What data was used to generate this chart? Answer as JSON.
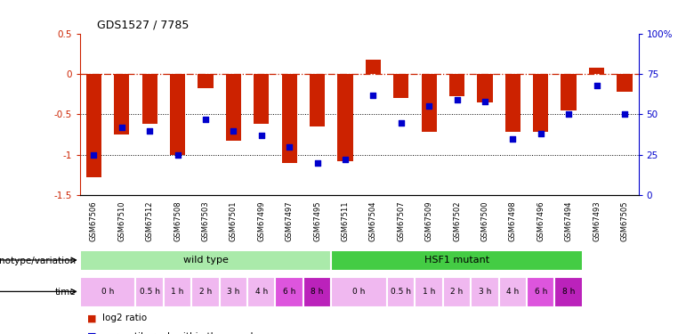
{
  "title": "GDS1527 / 7785",
  "samples": [
    "GSM67506",
    "GSM67510",
    "GSM67512",
    "GSM67508",
    "GSM67503",
    "GSM67501",
    "GSM67499",
    "GSM67497",
    "GSM67495",
    "GSM67511",
    "GSM67504",
    "GSM67507",
    "GSM67509",
    "GSM67502",
    "GSM67500",
    "GSM67498",
    "GSM67496",
    "GSM67494",
    "GSM67493",
    "GSM67505"
  ],
  "log2_ratio": [
    -1.28,
    -0.75,
    -0.62,
    -1.0,
    -0.18,
    -0.82,
    -0.62,
    -1.1,
    -0.65,
    -1.08,
    0.18,
    -0.3,
    -0.72,
    -0.28,
    -0.35,
    -0.72,
    -0.72,
    -0.45,
    0.08,
    -0.22
  ],
  "percentile_rank": [
    25,
    42,
    40,
    25,
    47,
    40,
    37,
    30,
    20,
    22,
    62,
    45,
    55,
    59,
    58,
    35,
    38,
    50,
    68,
    50
  ],
  "time_spans": [
    {
      "label": "0 h",
      "start": 0,
      "end": 2,
      "color": "#f0b8f0"
    },
    {
      "label": "0.5 h",
      "start": 2,
      "end": 3,
      "color": "#f0b8f0"
    },
    {
      "label": "1 h",
      "start": 3,
      "end": 4,
      "color": "#f0b8f0"
    },
    {
      "label": "2 h",
      "start": 4,
      "end": 5,
      "color": "#f0b8f0"
    },
    {
      "label": "3 h",
      "start": 5,
      "end": 6,
      "color": "#f0b8f0"
    },
    {
      "label": "4 h",
      "start": 6,
      "end": 7,
      "color": "#f0b8f0"
    },
    {
      "label": "6 h",
      "start": 7,
      "end": 8,
      "color": "#dd55dd"
    },
    {
      "label": "8 h",
      "start": 8,
      "end": 9,
      "color": "#bb22bb"
    },
    {
      "label": "0 h",
      "start": 9,
      "end": 11,
      "color": "#f0b8f0"
    },
    {
      "label": "0.5 h",
      "start": 11,
      "end": 12,
      "color": "#f0b8f0"
    },
    {
      "label": "1 h",
      "start": 12,
      "end": 13,
      "color": "#f0b8f0"
    },
    {
      "label": "2 h",
      "start": 13,
      "end": 14,
      "color": "#f0b8f0"
    },
    {
      "label": "3 h",
      "start": 14,
      "end": 15,
      "color": "#f0b8f0"
    },
    {
      "label": "4 h",
      "start": 15,
      "end": 16,
      "color": "#f0b8f0"
    },
    {
      "label": "6 h",
      "start": 16,
      "end": 17,
      "color": "#dd55dd"
    },
    {
      "label": "8 h",
      "start": 17,
      "end": 18,
      "color": "#bb22bb"
    }
  ],
  "genotype_spans": [
    {
      "label": "wild type",
      "start": 0,
      "end": 9,
      "color": "#aaeaaa"
    },
    {
      "label": "HSF1 mutant",
      "start": 9,
      "end": 18,
      "color": "#44cc44"
    }
  ],
  "ylim_left": [
    -1.5,
    0.5
  ],
  "ylim_right": [
    0,
    100
  ],
  "bar_color": "#cc2200",
  "dot_color": "#0000cc",
  "dashed_color": "#cc2200"
}
